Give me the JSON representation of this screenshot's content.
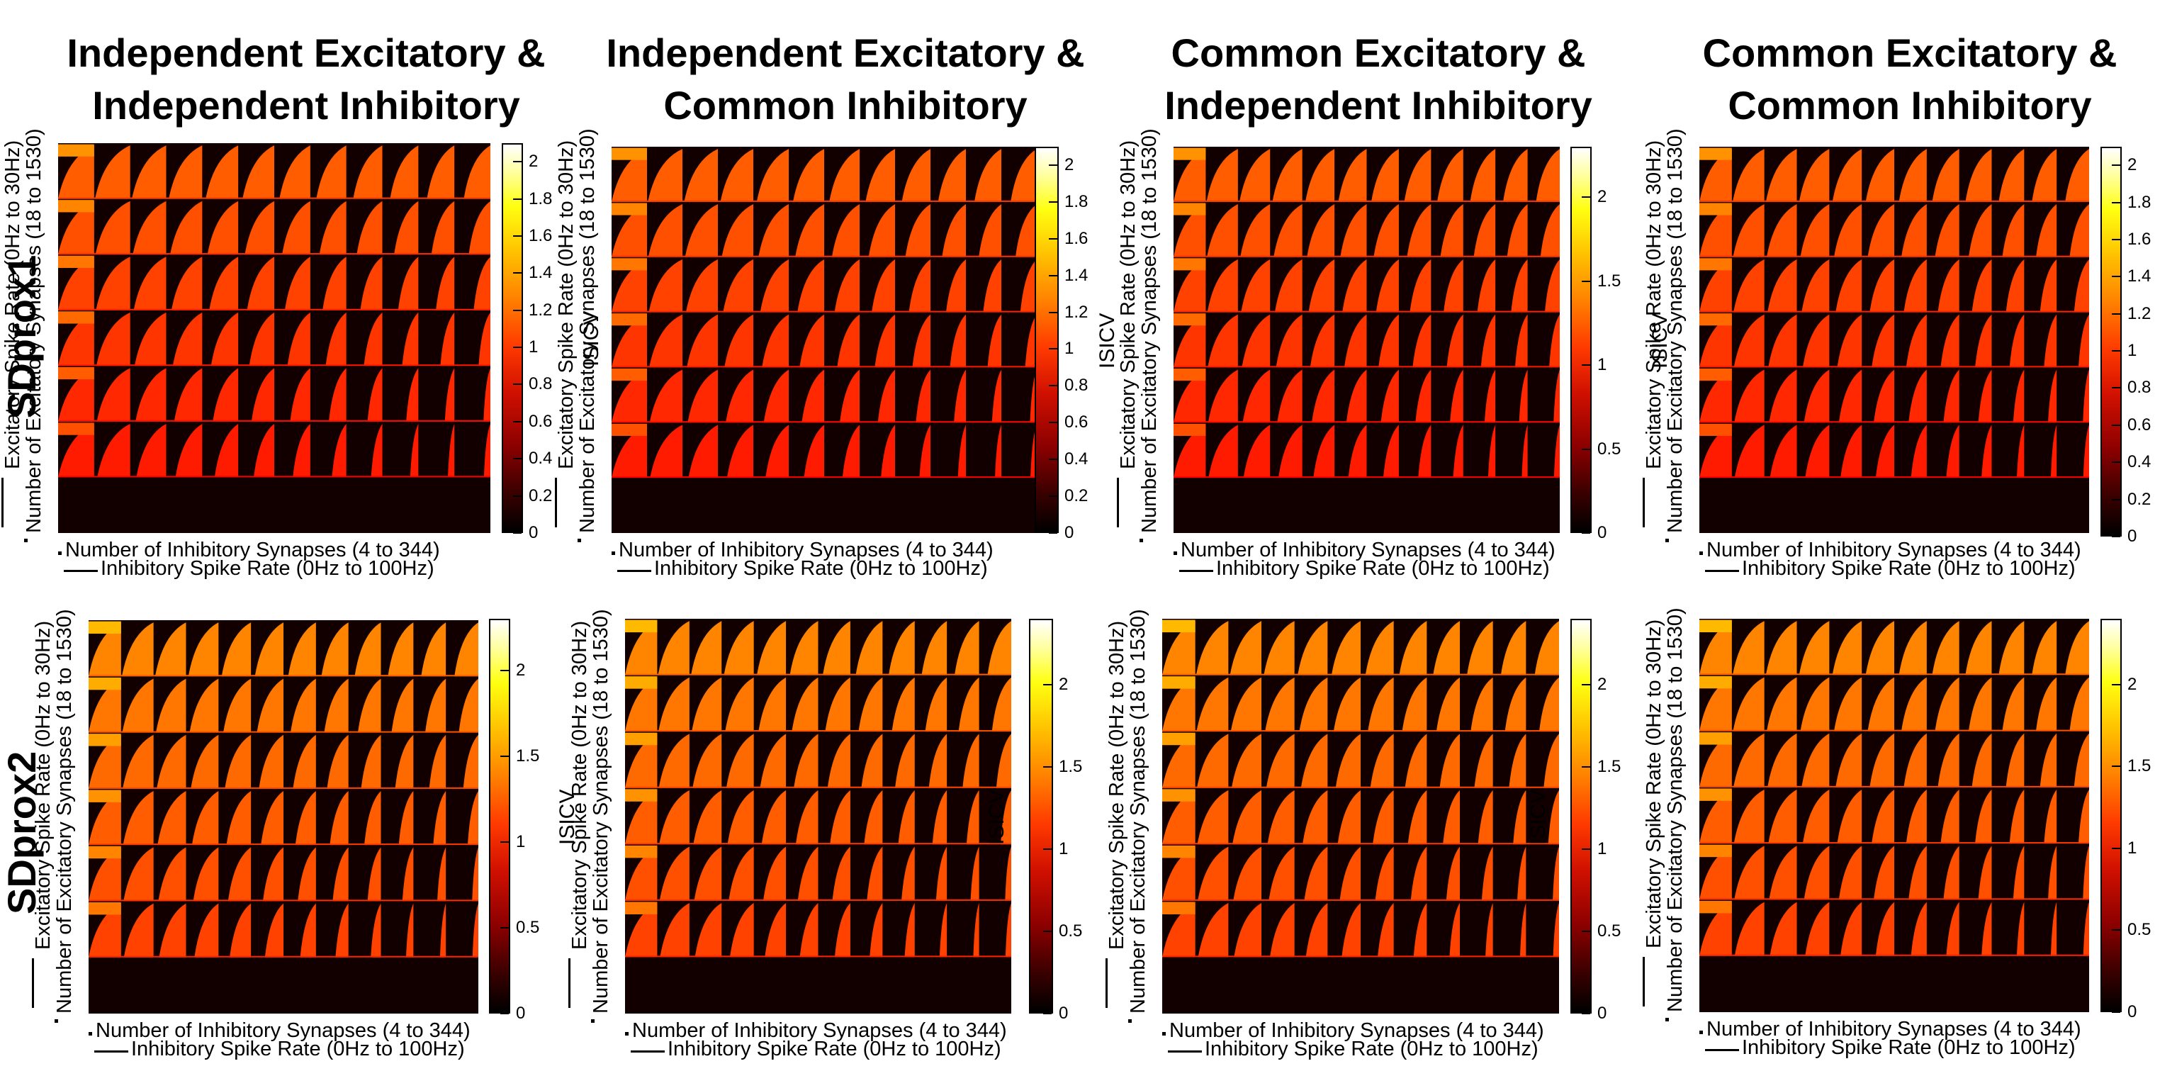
{
  "figure": {
    "column_titles": [
      [
        "Independent Excitatory &",
        "Independent Inhibitory"
      ],
      [
        "Independent Excitatory &",
        "Common Inhibitory"
      ],
      [
        "Common Excitatory &",
        "Independent Inhibitory"
      ],
      [
        "Common Excitatory &",
        "Common Inhibitory"
      ]
    ],
    "row_titles": [
      "SDprox1",
      "SDprox2"
    ],
    "xlabel_line1": "Number of Inhibitory Synapses (4 to 344)",
    "xlabel_line2": "Inhibitory Spike Rate (0Hz to 100Hz)",
    "ylabel_line1": "Excitatory Spike Rate (0Hz to 30Hz)",
    "ylabel_line2": "Number of Excitatory Synapses (18 to 1530)",
    "colorbar_label": "ISICV"
  },
  "chart_data": [
    {
      "type": "heatmap",
      "row": "SDprox1",
      "column": "Independent Excitatory & Independent Inhibitory",
      "grid": [
        7,
        12
      ],
      "clim": [
        0,
        2.1
      ],
      "colorbar_ticks": [
        "0",
        "0.2",
        "0.4",
        "0.6",
        "0.8",
        "1",
        "1.2",
        "1.4",
        "1.6",
        "1.8",
        "2"
      ],
      "colorbar_values": [
        0,
        0.2,
        0.4,
        0.6,
        0.8,
        1,
        1.2,
        1.4,
        1.6,
        1.8,
        2
      ],
      "colorbar_label": "ISICV",
      "colormap": "hot"
    },
    {
      "type": "heatmap",
      "row": "SDprox1",
      "column": "Independent Excitatory & Common Inhibitory",
      "grid": [
        7,
        12
      ],
      "clim": [
        0,
        2.1
      ],
      "colorbar_ticks": [
        "0",
        "0.2",
        "0.4",
        "0.6",
        "0.8",
        "1",
        "1.2",
        "1.4",
        "1.6",
        "1.8",
        "2"
      ],
      "colorbar_values": [
        0,
        0.2,
        0.4,
        0.6,
        0.8,
        1,
        1.2,
        1.4,
        1.6,
        1.8,
        2
      ],
      "colorbar_label": "ISICV",
      "colormap": "hot"
    },
    {
      "type": "heatmap",
      "row": "SDprox1",
      "column": "Common Excitatory & Independent Inhibitory",
      "grid": [
        7,
        12
      ],
      "clim": [
        0,
        2.3
      ],
      "colorbar_ticks": [
        "0",
        "0.5",
        "1",
        "1.5",
        "2"
      ],
      "colorbar_values": [
        0,
        0.5,
        1,
        1.5,
        2
      ],
      "colorbar_label": "ISICV",
      "colormap": "hot"
    },
    {
      "type": "heatmap",
      "row": "SDprox1",
      "column": "Common Excitatory & Common Inhibitory",
      "grid": [
        7,
        12
      ],
      "clim": [
        0,
        2.1
      ],
      "colorbar_ticks": [
        "0",
        "0.2",
        "0.4",
        "0.6",
        "0.8",
        "1",
        "1.2",
        "1.4",
        "1.6",
        "1.8",
        "2"
      ],
      "colorbar_values": [
        0,
        0.2,
        0.4,
        0.6,
        0.8,
        1,
        1.2,
        1.4,
        1.6,
        1.8,
        2
      ],
      "colorbar_label": "ISICV",
      "colormap": "hot"
    },
    {
      "type": "heatmap",
      "row": "SDprox2",
      "column": "Independent Excitatory & Independent Inhibitory",
      "grid": [
        7,
        12
      ],
      "clim": [
        0,
        2.3
      ],
      "colorbar_ticks": [
        "0",
        "0.5",
        "1",
        "1.5",
        "2"
      ],
      "colorbar_values": [
        0,
        0.5,
        1,
        1.5,
        2
      ],
      "colorbar_label": "ISICV",
      "colormap": "hot"
    },
    {
      "type": "heatmap",
      "row": "SDprox2",
      "column": "Independent Excitatory & Common Inhibitory",
      "grid": [
        7,
        12
      ],
      "clim": [
        0,
        2.4
      ],
      "colorbar_ticks": [
        "0",
        "0.5",
        "1",
        "1.5",
        "2"
      ],
      "colorbar_values": [
        0,
        0.5,
        1,
        1.5,
        2
      ],
      "colorbar_label": "ISICV",
      "colormap": "hot"
    },
    {
      "type": "heatmap",
      "row": "SDprox2",
      "column": "Common Excitatory & Independent Inhibitory",
      "grid": [
        7,
        12
      ],
      "clim": [
        0,
        2.4
      ],
      "colorbar_ticks": [
        "0",
        "0.5",
        "1",
        "1.5",
        "2"
      ],
      "colorbar_values": [
        0,
        0.5,
        1,
        1.5,
        2
      ],
      "colorbar_label": "ISICV",
      "colormap": "hot"
    },
    {
      "type": "heatmap",
      "row": "SDprox2",
      "column": "Common Excitatory & Common Inhibitory",
      "grid": [
        7,
        12
      ],
      "clim": [
        0,
        2.4
      ],
      "colorbar_ticks": [
        "0",
        "0.5",
        "1",
        "1.5",
        "2"
      ],
      "colorbar_values": [
        0,
        0.5,
        1,
        1.5,
        2
      ],
      "colorbar_label": "ISICV",
      "colormap": "hot"
    }
  ]
}
